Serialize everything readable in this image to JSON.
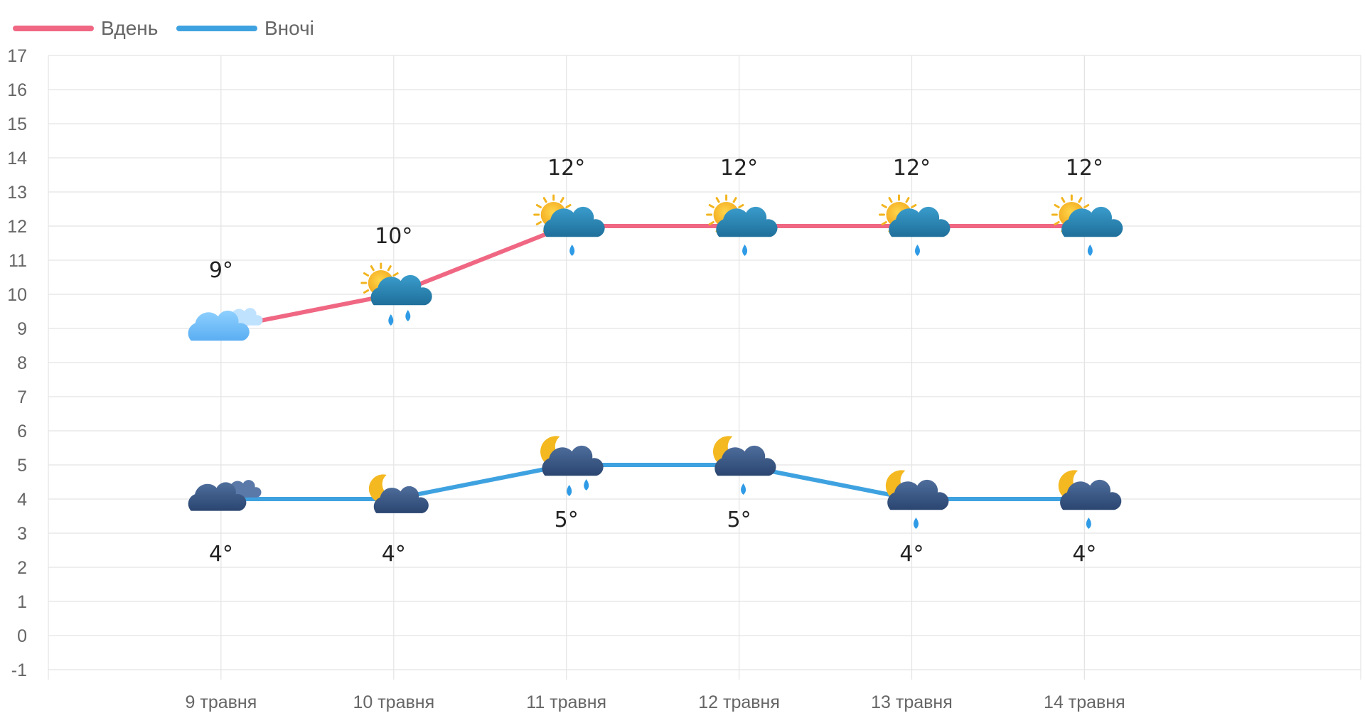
{
  "chart_data": {
    "type": "line",
    "categories": [
      "9 травня",
      "10 травня",
      "11 травня",
      "12 травня",
      "13 травня",
      "14 травня"
    ],
    "series": [
      {
        "name": "Вдень",
        "color": "#f06783",
        "values": [
          9,
          10,
          12,
          12,
          12,
          12
        ],
        "labels": [
          "9°",
          "10°",
          "12°",
          "12°",
          "12°",
          "12°"
        ],
        "icons": [
          "cloudy-day-icon",
          "partly-sunny-rain-icon",
          "partly-sunny-light-rain-icon",
          "partly-sunny-light-rain-icon",
          "partly-sunny-light-rain-icon",
          "partly-sunny-light-rain-icon"
        ]
      },
      {
        "name": "Вночі",
        "color": "#3fa2e0",
        "values": [
          4,
          4,
          5,
          5,
          4,
          4
        ],
        "labels": [
          "4°",
          "4°",
          "5°",
          "5°",
          "4°",
          "4°"
        ],
        "icons": [
          "cloudy-night-icon",
          "partly-cloudy-night-icon",
          "night-rain-icon",
          "night-light-rain-icon",
          "night-light-rain-icon",
          "night-light-rain-icon"
        ]
      }
    ],
    "y_ticks": [
      "-1",
      "0",
      "1",
      "2",
      "3",
      "4",
      "5",
      "6",
      "7",
      "8",
      "9",
      "10",
      "11",
      "12",
      "13",
      "14",
      "15",
      "16",
      "17"
    ],
    "ylim": [
      -1,
      17
    ],
    "grid": true,
    "legend_position": "top-left"
  }
}
